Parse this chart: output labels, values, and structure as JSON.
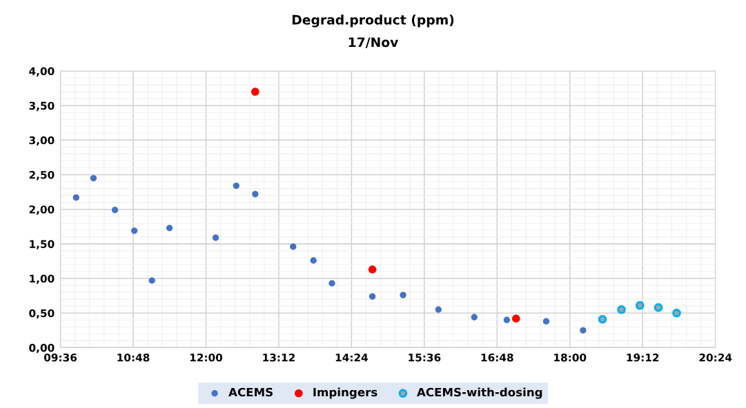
{
  "chart_data": {
    "type": "scatter",
    "title": "Degrad.product (ppm)",
    "subtitle": "17/Nov",
    "series": [
      {
        "name": "ACEMS",
        "color": "#4472c4",
        "x": [
          9.859,
          10.145,
          10.499,
          10.819,
          11.109,
          11.398,
          12.16,
          12.499,
          12.812,
          13.437,
          13.772,
          14.077,
          14.744,
          15.25,
          15.833,
          16.424,
          16.96,
          17.61,
          18.218
        ],
        "values": [
          2.17,
          2.45,
          1.99,
          1.69,
          0.97,
          1.73,
          1.59,
          2.34,
          2.22,
          1.46,
          1.26,
          0.93,
          0.74,
          0.76,
          0.55,
          0.44,
          0.4,
          0.38,
          0.25
        ]
      },
      {
        "name": "Impingers",
        "color": "#ff0000",
        "x": [
          12.812,
          14.744,
          17.113
        ],
        "values": [
          3.7,
          1.13,
          0.42
        ]
      },
      {
        "name": "ACEMS-with-dosing",
        "color": "#00b0f0",
        "x": [
          18.538,
          18.851,
          19.155,
          19.46,
          19.761
        ],
        "values": [
          0.41,
          0.55,
          0.61,
          0.58,
          0.5
        ]
      }
    ],
    "xlim": [
      9.6,
      20.4
    ],
    "xticks": [
      {
        "value": 9.6,
        "label": "09:36"
      },
      {
        "value": 10.8,
        "label": "10:48"
      },
      {
        "value": 12.0,
        "label": "12:00"
      },
      {
        "value": 13.2,
        "label": "13:12"
      },
      {
        "value": 14.4,
        "label": "14:24"
      },
      {
        "value": 15.6,
        "label": "15:36"
      },
      {
        "value": 16.8,
        "label": "16:48"
      },
      {
        "value": 18.0,
        "label": "18:00"
      },
      {
        "value": 19.2,
        "label": "19:12"
      },
      {
        "value": 20.4,
        "label": "20:24"
      }
    ],
    "ylim": [
      0,
      4
    ],
    "yticks": [
      {
        "value": 0,
        "label": "0,00"
      },
      {
        "value": 0.5,
        "label": "0,50"
      },
      {
        "value": 1.0,
        "label": "1,00"
      },
      {
        "value": 1.5,
        "label": "1,50"
      },
      {
        "value": 2.0,
        "label": "2,00"
      },
      {
        "value": 2.5,
        "label": "2,50"
      },
      {
        "value": 3.0,
        "label": "3,00"
      },
      {
        "value": 3.5,
        "label": "3,50"
      },
      {
        "value": 4.0,
        "label": "4,00"
      }
    ],
    "grid": true,
    "legend": "bottom",
    "marker": "circle"
  }
}
